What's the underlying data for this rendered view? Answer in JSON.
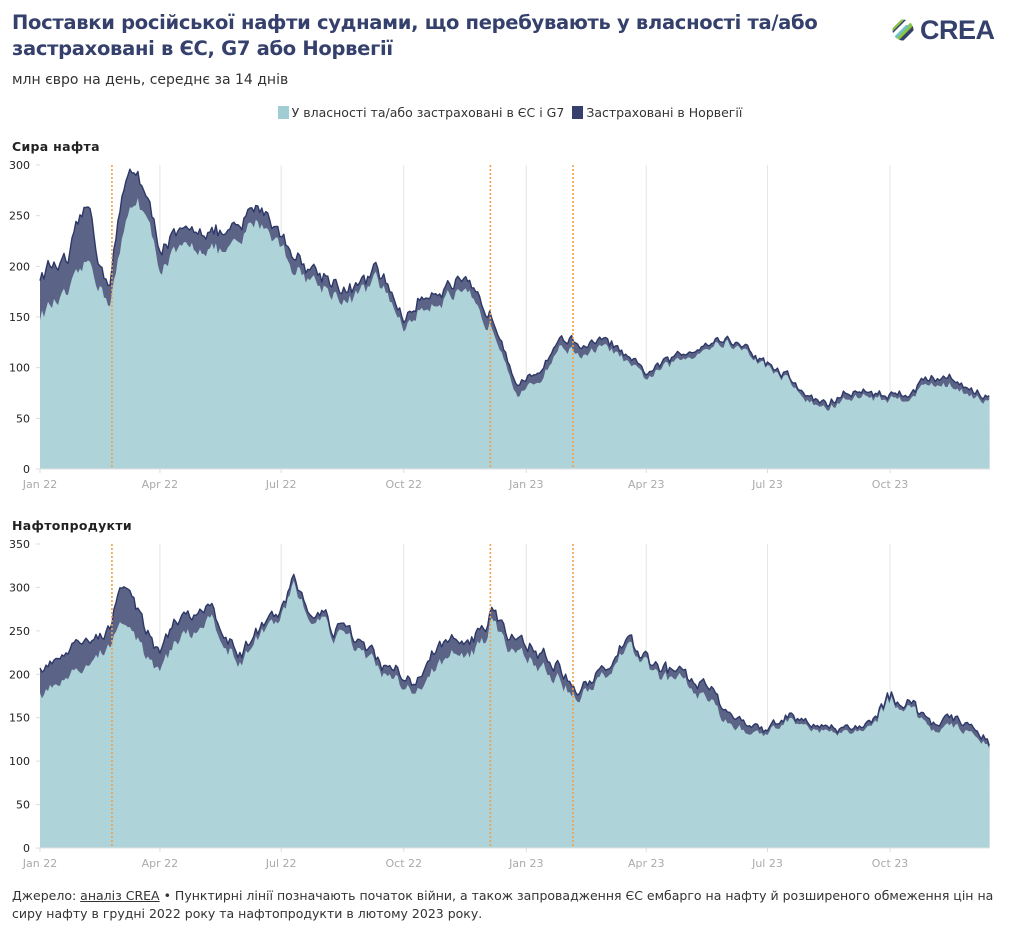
{
  "header": {
    "title": "Поставки російської нафти суднами, що перебувають у власності та/або застраховані в ЄС, G7 або Норвегії",
    "subtitle": "млн євро на день, середнє за 14 днів",
    "logo_text": "CREA"
  },
  "legend": [
    {
      "label": "У власності та/або застраховані в ЄС і G7",
      "color": "#a0cdd4"
    },
    {
      "label": "Застраховані в Норвегії",
      "color": "#35416c"
    }
  ],
  "colors": {
    "eu_g7_fill": "#aed3d8",
    "norway_fill": "#5b6387",
    "outline": "#2e3866",
    "event_line": "#f0a04b",
    "grid": "#e6e6e6",
    "tick_label": "#aaaaaa"
  },
  "footer": {
    "source_prefix": "Джерело: ",
    "source_link": "аналіз CREA",
    "text": " • Пунктирні лінії позначають початок війни, а також запровадження ЄС ембарго на нафту й розширеного обмеження цін на сиру нафту в грудні 2022 року та нафтопродукти в лютому 2023 року."
  },
  "chart_data": [
    {
      "type": "area",
      "stacked": true,
      "title": "Сира нафта",
      "ylabel": "млн євро на день",
      "ylim": [
        0,
        300
      ],
      "yticks": [
        0,
        50,
        100,
        150,
        200,
        250,
        300
      ],
      "xlim": [
        "2022-01-01",
        "2023-12-15"
      ],
      "xticks": [
        {
          "date": "2022-01-01",
          "label": "Jan 22"
        },
        {
          "date": "2022-04-01",
          "label": "Apr 22"
        },
        {
          "date": "2022-07-01",
          "label": "Jul 22"
        },
        {
          "date": "2022-10-01",
          "label": "Oct 22"
        },
        {
          "date": "2023-01-01",
          "label": "Jan 23"
        },
        {
          "date": "2023-04-01",
          "label": "Apr 23"
        },
        {
          "date": "2023-07-01",
          "label": "Jul 23"
        },
        {
          "date": "2023-10-01",
          "label": "Oct 23"
        }
      ],
      "event_lines": [
        "2022-02-24",
        "2022-12-05",
        "2023-02-05"
      ],
      "grid": "vertical",
      "x": [
        "2022-01-01",
        "2022-01-08",
        "2022-01-15",
        "2022-01-22",
        "2022-02-01",
        "2022-02-08",
        "2022-02-15",
        "2022-02-22",
        "2022-03-01",
        "2022-03-08",
        "2022-03-15",
        "2022-03-22",
        "2022-04-01",
        "2022-04-10",
        "2022-04-20",
        "2022-05-01",
        "2022-05-10",
        "2022-05-20",
        "2022-06-01",
        "2022-06-10",
        "2022-06-20",
        "2022-07-01",
        "2022-07-10",
        "2022-07-20",
        "2022-08-01",
        "2022-08-10",
        "2022-08-20",
        "2022-09-01",
        "2022-09-10",
        "2022-09-20",
        "2022-10-01",
        "2022-10-10",
        "2022-10-20",
        "2022-11-01",
        "2022-11-10",
        "2022-11-20",
        "2022-12-01",
        "2022-12-05",
        "2022-12-15",
        "2022-12-25",
        "2023-01-05",
        "2023-01-15",
        "2023-01-25",
        "2023-02-05",
        "2023-02-15",
        "2023-02-25",
        "2023-03-10",
        "2023-03-20",
        "2023-04-01",
        "2023-04-15",
        "2023-05-01",
        "2023-05-15",
        "2023-06-01",
        "2023-06-15",
        "2023-07-01",
        "2023-07-15",
        "2023-08-01",
        "2023-08-15",
        "2023-09-01",
        "2023-09-15",
        "2023-10-01",
        "2023-10-15",
        "2023-11-01",
        "2023-11-15",
        "2023-12-01",
        "2023-12-15"
      ],
      "series": [
        {
          "name": "У власності та/або застраховані в ЄС і G7",
          "values": [
            150,
            160,
            165,
            170,
            195,
            205,
            180,
            165,
            205,
            250,
            270,
            245,
            200,
            210,
            215,
            220,
            218,
            212,
            222,
            245,
            240,
            220,
            200,
            190,
            180,
            175,
            165,
            175,
            185,
            170,
            140,
            150,
            165,
            170,
            170,
            165,
            140,
            145,
            115,
            75,
            80,
            95,
            120,
            118,
            110,
            120,
            115,
            100,
            90,
            100,
            110,
            120,
            125,
            115,
            100,
            90,
            65,
            60,
            70,
            72,
            68,
            72,
            85,
            82,
            75,
            65
          ],
          "note": "lower area values"
        },
        {
          "name": "Застраховані в Норвегії",
          "values": [
            38,
            40,
            35,
            32,
            55,
            52,
            20,
            20,
            40,
            40,
            28,
            20,
            20,
            18,
            15,
            20,
            16,
            18,
            15,
            15,
            15,
            10,
            15,
            10,
            12,
            12,
            10,
            8,
            10,
            10,
            8,
            10,
            12,
            10,
            12,
            10,
            15,
            10,
            10,
            10,
            8,
            10,
            8,
            10,
            8,
            8,
            5,
            5,
            5,
            5,
            5,
            5,
            4,
            4,
            3,
            3,
            5,
            5,
            5,
            5,
            4,
            5,
            6,
            8,
            5,
            4
          ],
          "note": "stacked on top of EU/G7"
        }
      ]
    },
    {
      "type": "area",
      "stacked": true,
      "title": "Нафтопродукти",
      "ylabel": "млн євро на день",
      "ylim": [
        0,
        350
      ],
      "yticks": [
        0,
        50,
        100,
        150,
        200,
        250,
        300,
        350
      ],
      "xlim": [
        "2022-01-01",
        "2023-12-15"
      ],
      "xticks": [
        {
          "date": "2022-01-01",
          "label": "Jan 22"
        },
        {
          "date": "2022-04-01",
          "label": "Apr 22"
        },
        {
          "date": "2022-07-01",
          "label": "Jul 22"
        },
        {
          "date": "2022-10-01",
          "label": "Oct 22"
        },
        {
          "date": "2023-01-01",
          "label": "Jan 23"
        },
        {
          "date": "2023-04-01",
          "label": "Apr 23"
        },
        {
          "date": "2023-07-01",
          "label": "Jul 23"
        },
        {
          "date": "2023-10-01",
          "label": "Oct 23"
        }
      ],
      "event_lines": [
        "2022-02-24",
        "2022-12-05",
        "2023-02-05"
      ],
      "grid": "vertical",
      "x": [
        "2022-01-01",
        "2022-01-08",
        "2022-01-15",
        "2022-01-22",
        "2022-02-01",
        "2022-02-08",
        "2022-02-15",
        "2022-02-22",
        "2022-03-01",
        "2022-03-08",
        "2022-03-15",
        "2022-03-22",
        "2022-04-01",
        "2022-04-10",
        "2022-04-20",
        "2022-05-01",
        "2022-05-10",
        "2022-05-20",
        "2022-06-01",
        "2022-06-10",
        "2022-06-20",
        "2022-07-01",
        "2022-07-10",
        "2022-07-20",
        "2022-08-01",
        "2022-08-10",
        "2022-08-20",
        "2022-09-01",
        "2022-09-10",
        "2022-09-20",
        "2022-10-01",
        "2022-10-10",
        "2022-10-20",
        "2022-11-01",
        "2022-11-10",
        "2022-11-20",
        "2022-12-01",
        "2022-12-05",
        "2022-12-15",
        "2022-12-25",
        "2023-01-05",
        "2023-01-15",
        "2023-01-25",
        "2023-02-05",
        "2023-02-15",
        "2023-02-25",
        "2023-03-10",
        "2023-03-20",
        "2023-04-01",
        "2023-04-15",
        "2023-05-01",
        "2023-05-15",
        "2023-06-01",
        "2023-06-15",
        "2023-07-01",
        "2023-07-15",
        "2023-08-01",
        "2023-08-15",
        "2023-09-01",
        "2023-09-15",
        "2023-10-01",
        "2023-10-15",
        "2023-11-01",
        "2023-11-15",
        "2023-12-01",
        "2023-12-15"
      ],
      "series": [
        {
          "name": "У власності та/або застраховані в ЄС і G7",
          "values": [
            178,
            180,
            195,
            200,
            200,
            215,
            225,
            235,
            265,
            262,
            240,
            220,
            205,
            230,
            250,
            245,
            265,
            235,
            210,
            240,
            250,
            270,
            300,
            270,
            260,
            245,
            240,
            225,
            210,
            190,
            190,
            185,
            200,
            215,
            225,
            220,
            240,
            265,
            235,
            225,
            215,
            205,
            195,
            175,
            180,
            190,
            220,
            235,
            210,
            195,
            190,
            170,
            145,
            135,
            130,
            150,
            140,
            135,
            130,
            140,
            170,
            165,
            135,
            140,
            135,
            115
          ],
          "note": "lower area values"
        },
        {
          "name": "Застраховані в Норвегії",
          "values": [
            30,
            28,
            30,
            28,
            35,
            25,
            20,
            20,
            40,
            45,
            35,
            30,
            20,
            25,
            22,
            20,
            12,
            12,
            10,
            8,
            8,
            8,
            8,
            8,
            6,
            8,
            8,
            10,
            8,
            10,
            10,
            10,
            20,
            20,
            15,
            15,
            15,
            10,
            15,
            15,
            15,
            15,
            15,
            10,
            8,
            8,
            8,
            8,
            5,
            10,
            8,
            15,
            12,
            10,
            5,
            5,
            5,
            5,
            5,
            5,
            5,
            5,
            8,
            10,
            8,
            5
          ],
          "note": "stacked on top of EU/G7"
        }
      ]
    }
  ]
}
